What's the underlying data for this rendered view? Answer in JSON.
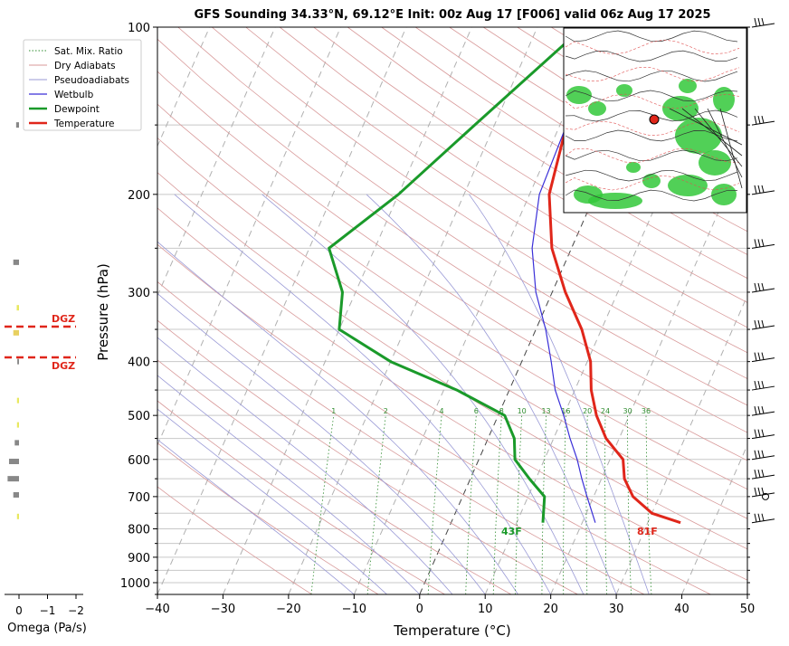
{
  "title": "GFS Sounding 34.33°N, 69.12°E Init: 00z Aug 17 [F006] valid 06z Aug 17 2025",
  "colors": {
    "temperature": "#e0261a",
    "dewpoint": "#1a9a2a",
    "wetbulb": "#3a2fd8",
    "dry_adiabat": "#d89a9a",
    "pseudoadiabat": "#9a9ad6",
    "mixing_ratio": "#2e8b2e",
    "dgz": "#e0261a"
  },
  "legend": {
    "placement": "top-left",
    "items": [
      {
        "label": "Sat. Mix. Ratio",
        "style": "dotted",
        "color": "#2e8b2e"
      },
      {
        "label": "Dry Adiabats",
        "style": "solid-thin",
        "color": "#d89a9a"
      },
      {
        "label": "Pseudoadiabats",
        "style": "solid-thin",
        "color": "#9a9ad6"
      },
      {
        "label": "Wetbulb",
        "style": "solid",
        "color": "#3a2fd8"
      },
      {
        "label": "Dewpoint",
        "style": "thick",
        "color": "#1a9a2a"
      },
      {
        "label": "Temperature",
        "style": "thick",
        "color": "#e0261a"
      }
    ]
  },
  "omega": {
    "label": "Omega (Pa/s)",
    "tick_labels": [
      "0",
      "−1",
      "−2"
    ],
    "dgz_label": "DGZ",
    "dgz_bounds_hpa": [
      348,
      392
    ]
  },
  "surface": {
    "temp_label": "81F",
    "dew_label": "43F"
  },
  "chart_data": {
    "type": "line",
    "subtype": "skew-T log-P sounding",
    "xlabel": "Temperature (°C)",
    "ylabel": "Pressure (hPa)",
    "xlim": [
      -40,
      50
    ],
    "ylim": [
      1050,
      100
    ],
    "y_scale": "log",
    "grid": true,
    "x_ticks": [
      -40,
      -30,
      -20,
      -10,
      0,
      10,
      20,
      30,
      40,
      50
    ],
    "x_tick_labels": [
      "−40",
      "−30",
      "−20",
      "−10",
      "0",
      "10",
      "20",
      "30",
      "40",
      "50"
    ],
    "y_ticks": [
      100,
      200,
      300,
      400,
      500,
      600,
      700,
      800,
      900,
      1000
    ],
    "mixing_ratio_labels": [
      "1",
      "2",
      "4",
      "6",
      "8",
      "10",
      "13",
      "16",
      "20",
      "24",
      "30",
      "36"
    ],
    "series": [
      {
        "name": "Temperature",
        "points": [
          [
            100,
            -14.0
          ],
          [
            150,
            -9.0
          ],
          [
            200,
            -7.0
          ],
          [
            250,
            -3.0
          ],
          [
            300,
            2.0
          ],
          [
            350,
            7.0
          ],
          [
            400,
            10.5
          ],
          [
            450,
            12.5
          ],
          [
            500,
            15.0
          ],
          [
            550,
            18.0
          ],
          [
            600,
            22.0
          ],
          [
            650,
            23.5
          ],
          [
            700,
            26.0
          ],
          [
            750,
            30.0
          ],
          [
            780,
            35.0
          ]
        ]
      },
      {
        "name": "Wetbulb",
        "points": [
          [
            150,
            -9.0
          ],
          [
            200,
            -8.5
          ],
          [
            250,
            -6.0
          ],
          [
            300,
            -2.5
          ],
          [
            350,
            1.5
          ],
          [
            400,
            4.5
          ],
          [
            450,
            7.0
          ],
          [
            500,
            10.0
          ],
          [
            550,
            12.5
          ],
          [
            600,
            15.0
          ],
          [
            650,
            17.0
          ],
          [
            700,
            19.0
          ],
          [
            780,
            22.0
          ]
        ]
      },
      {
        "name": "Dewpoint",
        "points": [
          [
            100,
            -13.0
          ],
          [
            150,
            -23.0
          ],
          [
            200,
            -30.0
          ],
          [
            250,
            -37.0
          ],
          [
            300,
            -32.0
          ],
          [
            350,
            -30.0
          ],
          [
            400,
            -20.0
          ],
          [
            450,
            -8.0
          ],
          [
            500,
            1.0
          ],
          [
            550,
            4.0
          ],
          [
            600,
            5.5
          ],
          [
            650,
            9.0
          ],
          [
            700,
            12.5
          ],
          [
            780,
            14.0
          ]
        ]
      }
    ],
    "wind_barbs_hpa": [
      100,
      150,
      200,
      250,
      300,
      350,
      400,
      450,
      500,
      550,
      600,
      650,
      700,
      780
    ]
  }
}
